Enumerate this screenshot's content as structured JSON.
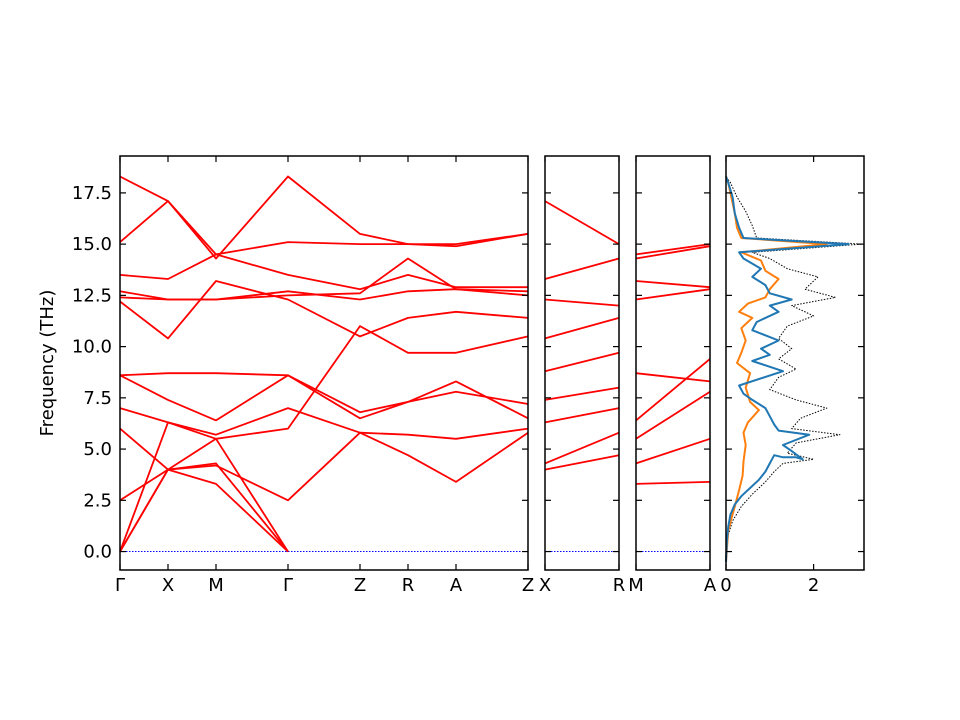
{
  "chart_data": {
    "type": "line",
    "ylabel": "Frequency (THz)",
    "ylim": [
      -0.9,
      19.3
    ],
    "yticks": [
      "0.0",
      "2.5",
      "5.0",
      "7.5",
      "10.0",
      "12.5",
      "15.0",
      "17.5"
    ],
    "ytick_values": [
      0.0,
      2.5,
      5.0,
      7.5,
      10.0,
      12.5,
      15.0,
      17.5
    ],
    "band_color": "#ff0000",
    "zero_line_color": "#0000ff",
    "band_panels": [
      {
        "labels": [
          "Γ",
          "X",
          "M",
          "Γ",
          "Z",
          "R",
          "A",
          "Z"
        ],
        "label_positions": [
          0,
          1,
          2,
          3.5,
          5,
          6,
          7,
          8.5
        ],
        "xlim": [
          0,
          8.5
        ],
        "bands": [
          [
            [
              0,
              0
            ],
            [
              1,
              4.0
            ],
            [
              2,
              4.3
            ],
            [
              3.5,
              0
            ]
          ],
          [
            [
              0,
              0
            ],
            [
              1,
              4.0
            ],
            [
              2,
              3.3
            ],
            [
              3.5,
              0
            ]
          ],
          [
            [
              0,
              0
            ],
            [
              1,
              6.3
            ],
            [
              2,
              5.5
            ],
            [
              3.5,
              0
            ]
          ],
          [
            [
              0,
              2.5
            ],
            [
              1,
              4.0
            ],
            [
              2,
              4.2
            ],
            [
              3.5,
              2.5
            ],
            [
              5,
              5.8
            ],
            [
              6,
              4.7
            ],
            [
              7,
              3.4
            ],
            [
              8.5,
              5.8
            ]
          ],
          [
            [
              0,
              6.0
            ],
            [
              1,
              4.0
            ],
            [
              2,
              5.5
            ],
            [
              3.5,
              6.0
            ],
            [
              5,
              11.0
            ],
            [
              6,
              9.7
            ],
            [
              7,
              9.7
            ],
            [
              8.5,
              10.5
            ]
          ],
          [
            [
              0,
              7.0
            ],
            [
              1,
              6.3
            ],
            [
              2,
              5.7
            ],
            [
              3.5,
              7.0
            ],
            [
              5,
              5.8
            ],
            [
              6,
              5.7
            ],
            [
              7,
              5.5
            ],
            [
              8.5,
              6.0
            ]
          ],
          [
            [
              0,
              8.6
            ],
            [
              1,
              8.7
            ],
            [
              2,
              8.7
            ],
            [
              3.5,
              8.6
            ],
            [
              5,
              6.5
            ],
            [
              6,
              7.3
            ],
            [
              7,
              7.8
            ],
            [
              8.5,
              7.2
            ]
          ],
          [
            [
              0,
              8.6
            ],
            [
              1,
              7.4
            ],
            [
              2,
              6.4
            ],
            [
              3.5,
              8.6
            ],
            [
              5,
              6.8
            ],
            [
              6,
              7.3
            ],
            [
              7,
              8.3
            ],
            [
              8.5,
              6.5
            ]
          ],
          [
            [
              0,
              12.2
            ],
            [
              1,
              10.4
            ],
            [
              2,
              13.2
            ],
            [
              3.5,
              12.3
            ],
            [
              5,
              10.5
            ],
            [
              6,
              11.4
            ],
            [
              7,
              11.7
            ],
            [
              8.5,
              11.4
            ]
          ],
          [
            [
              0,
              12.4
            ],
            [
              1,
              12.3
            ],
            [
              2,
              12.3
            ],
            [
              3.5,
              12.5
            ],
            [
              5,
              12.6
            ],
            [
              6,
              14.3
            ],
            [
              7,
              12.8
            ],
            [
              8.5,
              12.5
            ]
          ],
          [
            [
              0,
              12.7
            ],
            [
              1,
              12.3
            ],
            [
              2,
              12.3
            ],
            [
              3.5,
              12.7
            ],
            [
              5,
              12.3
            ],
            [
              6,
              12.7
            ],
            [
              7,
              12.8
            ],
            [
              8.5,
              12.7
            ]
          ],
          [
            [
              0,
              13.5
            ],
            [
              1,
              13.3
            ],
            [
              2,
              14.5
            ],
            [
              3.5,
              13.5
            ],
            [
              5,
              12.8
            ],
            [
              6,
              13.5
            ],
            [
              7,
              12.9
            ],
            [
              8.5,
              12.9
            ]
          ],
          [
            [
              0,
              15.1
            ],
            [
              1,
              17.1
            ],
            [
              2,
              14.5
            ],
            [
              3.5,
              15.1
            ],
            [
              5,
              15.0
            ],
            [
              6,
              15.0
            ],
            [
              7,
              14.9
            ],
            [
              8.5,
              15.5
            ]
          ],
          [
            [
              0,
              18.3
            ],
            [
              1,
              17.1
            ],
            [
              2,
              14.3
            ],
            [
              3.5,
              18.3
            ],
            [
              5,
              15.5
            ],
            [
              6,
              15.0
            ],
            [
              7,
              15.0
            ],
            [
              8.5,
              15.5
            ]
          ]
        ]
      },
      {
        "labels": [
          "X",
          "R"
        ],
        "label_positions": [
          0,
          1
        ],
        "xlim": [
          0,
          1
        ],
        "bands": [
          [
            [
              0,
              4.0
            ],
            [
              1,
              4.7
            ]
          ],
          [
            [
              0,
              4.3
            ],
            [
              1,
              5.8
            ]
          ],
          [
            [
              0,
              6.3
            ],
            [
              1,
              7.0
            ]
          ],
          [
            [
              0,
              7.4
            ],
            [
              1,
              8.0
            ]
          ],
          [
            [
              0,
              8.8
            ],
            [
              1,
              9.7
            ]
          ],
          [
            [
              0,
              10.4
            ],
            [
              1,
              11.4
            ]
          ],
          [
            [
              0,
              12.3
            ],
            [
              1,
              12.0
            ]
          ],
          [
            [
              0,
              13.3
            ],
            [
              1,
              14.3
            ]
          ],
          [
            [
              0,
              17.1
            ],
            [
              1,
              15.0
            ]
          ]
        ]
      },
      {
        "labels": [
          "M",
          "A"
        ],
        "label_positions": [
          0,
          1
        ],
        "xlim": [
          0,
          1
        ],
        "bands": [
          [
            [
              0,
              3.3
            ],
            [
              1,
              3.4
            ]
          ],
          [
            [
              0,
              4.3
            ],
            [
              1,
              5.5
            ]
          ],
          [
            [
              0,
              5.5
            ],
            [
              1,
              7.8
            ]
          ],
          [
            [
              0,
              6.4
            ],
            [
              1,
              9.4
            ]
          ],
          [
            [
              0,
              8.7
            ],
            [
              1,
              8.3
            ]
          ],
          [
            [
              0,
              12.3
            ],
            [
              1,
              12.8
            ]
          ],
          [
            [
              0,
              13.2
            ],
            [
              1,
              12.9
            ]
          ],
          [
            [
              0,
              14.3
            ],
            [
              1,
              14.9
            ]
          ],
          [
            [
              0,
              14.5
            ],
            [
              1,
              15.0
            ]
          ]
        ]
      }
    ],
    "dos_panel": {
      "xlim": [
        0,
        3.15
      ],
      "xticks": [
        "0",
        "2"
      ],
      "xtick_values": [
        0,
        2
      ],
      "series": [
        {
          "color": "#1f77b4",
          "style": "solid",
          "points": [
            [
              0,
              -0.5
            ],
            [
              0.02,
              0.5
            ],
            [
              0.05,
              1.2
            ],
            [
              0.1,
              1.8
            ],
            [
              0.2,
              2.3
            ],
            [
              0.35,
              2.7
            ],
            [
              0.55,
              3.1
            ],
            [
              0.75,
              3.5
            ],
            [
              0.9,
              3.9
            ],
            [
              1.0,
              4.3
            ],
            [
              1.05,
              4.5
            ],
            [
              1.1,
              4.7
            ],
            [
              1.3,
              4.6
            ],
            [
              1.6,
              4.6
            ],
            [
              1.75,
              4.5
            ],
            [
              1.5,
              4.9
            ],
            [
              1.3,
              5.2
            ],
            [
              1.9,
              5.7
            ],
            [
              1.2,
              5.9
            ],
            [
              1.1,
              6.2
            ],
            [
              1.0,
              6.6
            ],
            [
              0.9,
              7.0
            ],
            [
              0.6,
              7.4
            ],
            [
              0.4,
              7.7
            ],
            [
              0.3,
              8.1
            ],
            [
              1.3,
              8.8
            ],
            [
              0.6,
              9.3
            ],
            [
              1.0,
              9.6
            ],
            [
              0.8,
              9.9
            ],
            [
              1.2,
              10.3
            ],
            [
              0.6,
              10.8
            ],
            [
              0.7,
              11.2
            ],
            [
              1.2,
              11.7
            ],
            [
              1.0,
              12.0
            ],
            [
              1.5,
              12.3
            ],
            [
              1.0,
              12.6
            ],
            [
              0.9,
              13.0
            ],
            [
              0.6,
              13.4
            ],
            [
              0.8,
              13.8
            ],
            [
              0.4,
              14.3
            ],
            [
              0.3,
              14.6
            ],
            [
              2.8,
              15.0
            ],
            [
              0.4,
              15.3
            ],
            [
              0.3,
              15.8
            ],
            [
              0.2,
              16.5
            ],
            [
              0.15,
              17.3
            ],
            [
              0.05,
              18.0
            ],
            [
              0,
              18.3
            ]
          ]
        },
        {
          "color": "#ff7f0e",
          "style": "solid",
          "points": [
            [
              0,
              -0.5
            ],
            [
              0.05,
              1.0
            ],
            [
              0.12,
              1.6
            ],
            [
              0.2,
              2.2
            ],
            [
              0.3,
              3.0
            ],
            [
              0.38,
              3.7
            ],
            [
              0.4,
              4.4
            ],
            [
              0.45,
              5.2
            ],
            [
              0.4,
              5.8
            ],
            [
              0.5,
              6.3
            ],
            [
              0.75,
              6.9
            ],
            [
              0.55,
              7.3
            ],
            [
              0.45,
              8.0
            ],
            [
              0.55,
              8.7
            ],
            [
              0.25,
              9.2
            ],
            [
              0.35,
              9.7
            ],
            [
              0.45,
              10.3
            ],
            [
              0.35,
              10.9
            ],
            [
              0.6,
              11.4
            ],
            [
              0.3,
              11.7
            ],
            [
              0.5,
              12.1
            ],
            [
              0.9,
              12.4
            ],
            [
              1.0,
              12.8
            ],
            [
              1.2,
              13.3
            ],
            [
              0.9,
              13.7
            ],
            [
              0.8,
              14.2
            ],
            [
              0.35,
              14.6
            ],
            [
              2.3,
              15.0
            ],
            [
              0.35,
              15.3
            ],
            [
              0.25,
              15.8
            ],
            [
              0.2,
              16.5
            ],
            [
              0.12,
              17.3
            ],
            [
              0.05,
              18.0
            ],
            [
              0,
              18.3
            ]
          ]
        },
        {
          "color": "#000000",
          "style": "dotted",
          "points": [
            [
              0,
              -0.5
            ],
            [
              0.05,
              0.8
            ],
            [
              0.15,
              1.5
            ],
            [
              0.35,
              2.2
            ],
            [
              0.6,
              2.8
            ],
            [
              0.9,
              3.4
            ],
            [
              1.1,
              3.9
            ],
            [
              1.3,
              4.3
            ],
            [
              2.0,
              4.5
            ],
            [
              1.4,
              4.8
            ],
            [
              1.6,
              5.3
            ],
            [
              2.6,
              5.7
            ],
            [
              1.5,
              6.0
            ],
            [
              1.7,
              6.5
            ],
            [
              2.3,
              7.0
            ],
            [
              1.6,
              7.4
            ],
            [
              1.0,
              7.9
            ],
            [
              1.2,
              8.5
            ],
            [
              1.6,
              8.9
            ],
            [
              1.2,
              9.4
            ],
            [
              1.5,
              9.9
            ],
            [
              1.2,
              10.4
            ],
            [
              1.4,
              11.0
            ],
            [
              2.0,
              11.5
            ],
            [
              1.5,
              12.0
            ],
            [
              2.5,
              12.4
            ],
            [
              1.8,
              12.8
            ],
            [
              2.1,
              13.4
            ],
            [
              1.4,
              13.8
            ],
            [
              1.0,
              14.3
            ],
            [
              0.6,
              14.6
            ],
            [
              3.1,
              15.0
            ],
            [
              0.7,
              15.3
            ],
            [
              0.6,
              15.9
            ],
            [
              0.45,
              16.6
            ],
            [
              0.25,
              17.3
            ],
            [
              0.1,
              18.0
            ],
            [
              0,
              18.3
            ]
          ]
        }
      ]
    }
  }
}
